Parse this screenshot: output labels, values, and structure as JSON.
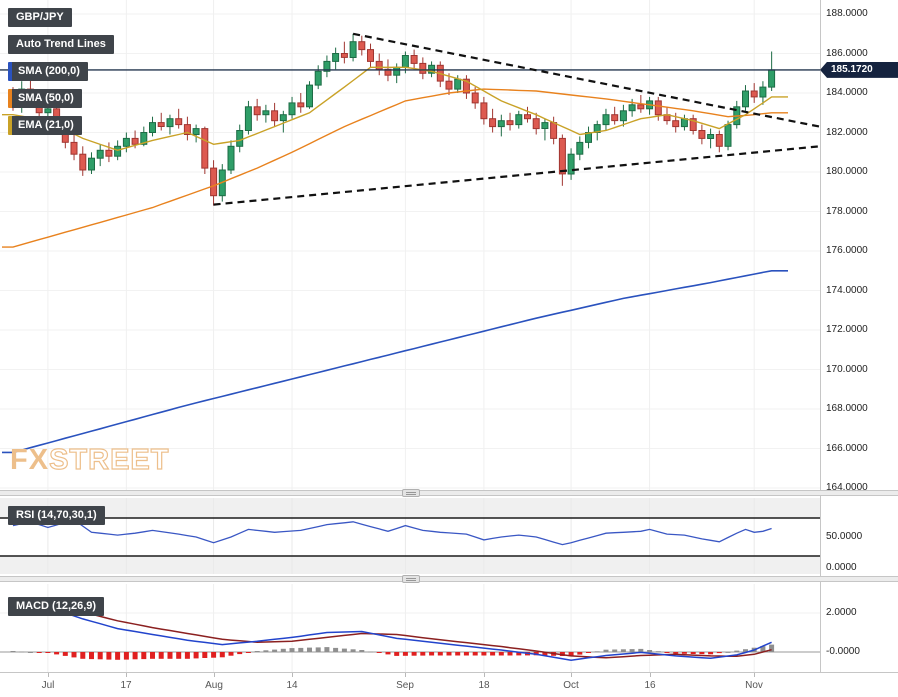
{
  "window": {
    "app": "FXStreet technical chart",
    "symbol": "GBP/JPY"
  },
  "badges": {
    "symbol": "GBP/JPY",
    "auto_trend": "Auto Trend Lines",
    "sma200": "SMA (200,0)",
    "sma50": "SMA (50,0)",
    "ema21": "EMA (21,0)",
    "rsi": "RSI (14,70,30,1)",
    "macd": "MACD (12,26,9)"
  },
  "watermark": {
    "fx": "FX",
    "street": "STREET"
  },
  "colors": {
    "candle_up": "#2f9e68",
    "candle_up_border": "#1d6b45",
    "candle_down": "#dd5a50",
    "candle_down_border": "#a03530",
    "sma200": "#2a52be",
    "sma50": "#e8821e",
    "ema21": "#c9a227",
    "price_line": "#24364f",
    "trend": "#111111",
    "rsi_line": "#3a57c4",
    "rsi_level": "#1c1c1c",
    "macd_line": "#2244cc",
    "macd_signal": "#8b2020",
    "hist_neg": "#e02020",
    "hist_pos": "#8f8f8f",
    "badge_bg": "#3f444a",
    "badge_text": "#ffffff",
    "price_badge_bg": "#15233f",
    "watermark": "#edbf8b"
  },
  "price_axis": {
    "labels": [
      {
        "v": 188,
        "t": "188.0000"
      },
      {
        "v": 186,
        "t": "186.0000"
      },
      {
        "v": 184,
        "t": "184.0000"
      },
      {
        "v": 182,
        "t": "182.0000"
      },
      {
        "v": 180,
        "t": "180.0000"
      },
      {
        "v": 178,
        "t": "178.0000"
      },
      {
        "v": 176,
        "t": "176.0000"
      },
      {
        "v": 174,
        "t": "174.0000"
      },
      {
        "v": 172,
        "t": "172.0000"
      },
      {
        "v": 170,
        "t": "170.0000"
      },
      {
        "v": 168,
        "t": "168.0000"
      },
      {
        "v": 166,
        "t": "166.0000"
      },
      {
        "v": 164,
        "t": "164.0000"
      }
    ],
    "current": {
      "label": "185.1720",
      "value": 185.172
    }
  },
  "rsi_axis": {
    "labels": [
      {
        "v": 50,
        "t": "50.0000"
      },
      {
        "v": 0,
        "t": "0.0000"
      }
    ]
  },
  "macd_axis": {
    "labels": [
      {
        "v": 2,
        "t": "2.0000"
      },
      {
        "v": 0,
        "t": "-0.0000"
      }
    ]
  },
  "x_axis": {
    "ticks": [
      {
        "t": "Jul",
        "bar": 4
      },
      {
        "t": "17",
        "bar": 13
      },
      {
        "t": "Aug",
        "bar": 23
      },
      {
        "t": "14",
        "bar": 32
      },
      {
        "t": "Sep",
        "bar": 45
      },
      {
        "t": "18",
        "bar": 54
      },
      {
        "t": "Oct",
        "bar": 64
      },
      {
        "t": "16",
        "bar": 73
      },
      {
        "t": "Nov",
        "bar": 85
      }
    ]
  },
  "chart_data": [
    {
      "type": "candlestick",
      "title": "GBP/JPY daily candles with SMA(200), SMA(50), EMA(21), auto trend lines and last price 185.1720",
      "x_tick_labels": [
        "Jul",
        "17",
        "Aug",
        "14",
        "Sep",
        "18",
        "Oct",
        "16",
        "Nov"
      ],
      "x_tick_bars": [
        4,
        13,
        23,
        32,
        45,
        54,
        64,
        73,
        85
      ],
      "ylim": [
        163.6,
        188.4
      ],
      "y_ticks": [
        164,
        166,
        168,
        170,
        172,
        174,
        176,
        178,
        180,
        182,
        184,
        186,
        188
      ],
      "current_price": 185.172,
      "ohlc": [
        [
          183.9,
          184.3,
          183.1,
          183.3
        ],
        [
          183.3,
          184.6,
          183.0,
          184.2
        ],
        [
          184.2,
          184.8,
          183.6,
          183.8
        ],
        [
          183.8,
          184.1,
          182.8,
          183.0
        ],
        [
          183.0,
          183.5,
          182.4,
          183.2
        ],
        [
          183.2,
          183.4,
          181.9,
          182.1
        ],
        [
          182.1,
          182.5,
          181.2,
          181.5
        ],
        [
          181.5,
          182.0,
          180.6,
          180.9
        ],
        [
          180.9,
          181.3,
          179.8,
          180.1
        ],
        [
          180.1,
          181.0,
          179.9,
          180.7
        ],
        [
          180.7,
          181.4,
          180.3,
          181.1
        ],
        [
          181.1,
          181.5,
          180.5,
          180.8
        ],
        [
          180.8,
          181.6,
          180.6,
          181.3
        ],
        [
          181.3,
          182.0,
          181.0,
          181.7
        ],
        [
          181.7,
          182.1,
          181.2,
          181.4
        ],
        [
          181.4,
          182.3,
          181.3,
          182.0
        ],
        [
          182.0,
          182.8,
          181.8,
          182.5
        ],
        [
          182.5,
          183.0,
          182.1,
          182.3
        ],
        [
          182.3,
          182.9,
          181.9,
          182.7
        ],
        [
          182.7,
          183.2,
          182.2,
          182.4
        ],
        [
          182.4,
          182.8,
          181.6,
          181.9
        ],
        [
          181.9,
          182.4,
          181.5,
          182.2
        ],
        [
          182.2,
          182.3,
          179.9,
          180.2
        ],
        [
          180.2,
          180.6,
          178.3,
          178.8
        ],
        [
          178.8,
          180.4,
          178.5,
          180.1
        ],
        [
          180.1,
          181.6,
          179.9,
          181.3
        ],
        [
          181.3,
          182.4,
          181.0,
          182.1
        ],
        [
          182.1,
          183.6,
          181.9,
          183.3
        ],
        [
          183.3,
          183.7,
          182.6,
          182.9
        ],
        [
          182.9,
          183.4,
          182.5,
          183.1
        ],
        [
          183.1,
          183.5,
          182.3,
          182.6
        ],
        [
          182.6,
          183.1,
          182.0,
          182.9
        ],
        [
          182.9,
          183.8,
          182.7,
          183.5
        ],
        [
          183.5,
          184.0,
          183.0,
          183.3
        ],
        [
          183.3,
          184.6,
          183.2,
          184.4
        ],
        [
          184.4,
          185.4,
          184.2,
          185.1
        ],
        [
          185.1,
          185.9,
          184.8,
          185.6
        ],
        [
          185.6,
          186.3,
          185.2,
          186.0
        ],
        [
          186.0,
          186.6,
          185.5,
          185.8
        ],
        [
          185.8,
          187.0,
          185.6,
          186.6
        ],
        [
          186.6,
          186.9,
          185.9,
          186.2
        ],
        [
          186.2,
          186.5,
          185.3,
          185.6
        ],
        [
          185.6,
          186.0,
          184.9,
          185.2
        ],
        [
          185.2,
          185.7,
          184.6,
          184.9
        ],
        [
          184.9,
          185.5,
          184.5,
          185.3
        ],
        [
          185.3,
          186.1,
          185.0,
          185.9
        ],
        [
          185.9,
          186.2,
          185.2,
          185.5
        ],
        [
          185.5,
          185.8,
          184.7,
          185.0
        ],
        [
          185.0,
          185.6,
          184.8,
          185.4
        ],
        [
          185.4,
          185.6,
          184.3,
          184.6
        ],
        [
          184.6,
          185.0,
          183.9,
          184.2
        ],
        [
          184.2,
          184.9,
          184.0,
          184.7
        ],
        [
          184.7,
          184.9,
          183.7,
          184.0
        ],
        [
          184.0,
          184.3,
          183.2,
          183.5
        ],
        [
          183.5,
          183.8,
          182.4,
          182.7
        ],
        [
          182.7,
          183.2,
          182.0,
          182.3
        ],
        [
          182.3,
          182.9,
          181.8,
          182.6
        ],
        [
          182.6,
          183.0,
          182.1,
          182.4
        ],
        [
          182.4,
          183.1,
          182.2,
          182.9
        ],
        [
          182.9,
          183.3,
          182.5,
          182.7
        ],
        [
          182.7,
          183.0,
          181.9,
          182.2
        ],
        [
          182.2,
          182.7,
          181.6,
          182.5
        ],
        [
          182.5,
          182.8,
          181.4,
          181.7
        ],
        [
          181.7,
          181.9,
          179.3,
          179.9
        ],
        [
          179.9,
          181.2,
          179.6,
          180.9
        ],
        [
          180.9,
          181.8,
          180.6,
          181.5
        ],
        [
          181.5,
          182.3,
          181.2,
          182.0
        ],
        [
          182.0,
          182.6,
          181.6,
          182.4
        ],
        [
          182.4,
          183.2,
          182.1,
          182.9
        ],
        [
          182.9,
          183.3,
          182.4,
          182.6
        ],
        [
          182.6,
          183.4,
          182.3,
          183.1
        ],
        [
          183.1,
          183.7,
          182.8,
          183.4
        ],
        [
          183.4,
          183.9,
          183.0,
          183.2
        ],
        [
          183.2,
          183.8,
          182.9,
          183.6
        ],
        [
          183.6,
          183.8,
          182.6,
          182.9
        ],
        [
          182.9,
          183.3,
          182.4,
          182.6
        ],
        [
          182.6,
          183.0,
          182.0,
          182.3
        ],
        [
          182.3,
          182.9,
          182.1,
          182.7
        ],
        [
          182.7,
          182.9,
          181.9,
          182.1
        ],
        [
          182.1,
          182.4,
          181.4,
          181.7
        ],
        [
          181.7,
          182.2,
          181.2,
          181.9
        ],
        [
          181.9,
          182.1,
          181.0,
          181.3
        ],
        [
          181.3,
          182.6,
          181.1,
          182.4
        ],
        [
          182.4,
          183.6,
          182.2,
          183.3
        ],
        [
          183.3,
          184.4,
          183.1,
          184.1
        ],
        [
          184.1,
          184.5,
          183.5,
          183.8
        ],
        [
          183.8,
          184.6,
          183.4,
          184.3
        ],
        [
          184.3,
          186.1,
          184.1,
          185.172
        ]
      ],
      "overlays": {
        "sma200_anchors": [
          [
            0,
            165.8
          ],
          [
            10,
            167.0
          ],
          [
            20,
            168.2
          ],
          [
            30,
            169.3
          ],
          [
            40,
            170.4
          ],
          [
            50,
            171.5
          ],
          [
            60,
            172.6
          ],
          [
            70,
            173.6
          ],
          [
            80,
            174.4
          ],
          [
            87,
            175.0
          ]
        ],
        "sma50_anchors": [
          [
            0,
            176.2
          ],
          [
            8,
            177.2
          ],
          [
            16,
            178.2
          ],
          [
            23,
            179.3
          ],
          [
            28,
            180.2
          ],
          [
            32,
            181.0
          ],
          [
            38,
            182.3
          ],
          [
            45,
            183.6
          ],
          [
            50,
            184.0
          ],
          [
            54,
            184.2
          ],
          [
            60,
            184.1
          ],
          [
            64,
            183.9
          ],
          [
            68,
            183.7
          ],
          [
            73,
            183.4
          ],
          [
            78,
            183.1
          ],
          [
            82,
            182.8
          ],
          [
            85,
            182.9
          ],
          [
            87,
            183.0
          ]
        ],
        "ema21_anchors": [
          [
            0,
            182.9
          ],
          [
            4,
            182.6
          ],
          [
            8,
            181.7
          ],
          [
            12,
            181.1
          ],
          [
            16,
            181.6
          ],
          [
            20,
            182.0
          ],
          [
            23,
            181.4
          ],
          [
            26,
            181.6
          ],
          [
            30,
            182.3
          ],
          [
            34,
            183.0
          ],
          [
            38,
            184.3
          ],
          [
            41,
            185.3
          ],
          [
            45,
            185.3
          ],
          [
            48,
            185.1
          ],
          [
            52,
            184.6
          ],
          [
            56,
            183.6
          ],
          [
            60,
            182.9
          ],
          [
            63,
            182.3
          ],
          [
            65,
            181.9
          ],
          [
            68,
            182.1
          ],
          [
            72,
            182.7
          ],
          [
            75,
            182.9
          ],
          [
            78,
            182.6
          ],
          [
            81,
            182.2
          ],
          [
            84,
            182.9
          ],
          [
            87,
            183.8
          ]
        ]
      },
      "trendlines": [
        {
          "name": "upper-descending",
          "from": [
            39,
            187.0
          ],
          "to": [
            92.5,
            182.3
          ]
        },
        {
          "name": "lower-ascending",
          "from": [
            23,
            178.35
          ],
          "to": [
            92.5,
            181.3
          ]
        }
      ]
    },
    {
      "type": "line",
      "name": "RSI (14,70,30,1)",
      "levels": [
        70,
        30
      ],
      "ylim": [
        0,
        100
      ],
      "y_tick_labels": [
        "50.0000",
        "0.0000"
      ],
      "anchors": [
        [
          0,
          62
        ],
        [
          2,
          66
        ],
        [
          4,
          60
        ],
        [
          7,
          68
        ],
        [
          9,
          55
        ],
        [
          12,
          52
        ],
        [
          14,
          54
        ],
        [
          16,
          57
        ],
        [
          19,
          53
        ],
        [
          21,
          50
        ],
        [
          23,
          44
        ],
        [
          25,
          50
        ],
        [
          27,
          58
        ],
        [
          30,
          55
        ],
        [
          33,
          57
        ],
        [
          36,
          63
        ],
        [
          39,
          66
        ],
        [
          41,
          61
        ],
        [
          43,
          56
        ],
        [
          45,
          62
        ],
        [
          47,
          57
        ],
        [
          49,
          55
        ],
        [
          52,
          53
        ],
        [
          54,
          47
        ],
        [
          56,
          50
        ],
        [
          58,
          52
        ],
        [
          60,
          50
        ],
        [
          63,
          42
        ],
        [
          64,
          44
        ],
        [
          66,
          49
        ],
        [
          68,
          54
        ],
        [
          70,
          55
        ],
        [
          72,
          56
        ],
        [
          73,
          58
        ],
        [
          75,
          53
        ],
        [
          77,
          52
        ],
        [
          79,
          48
        ],
        [
          81,
          45
        ],
        [
          83,
          54
        ],
        [
          84,
          58
        ],
        [
          85,
          55
        ],
        [
          86,
          56
        ],
        [
          87,
          59
        ]
      ]
    },
    {
      "type": "macd",
      "name": "MACD (12,26,9)",
      "y_tick_labels": [
        "2.0000",
        "-0.0000"
      ],
      "macd_anchors": [
        [
          0,
          2.6
        ],
        [
          4,
          2.3
        ],
        [
          8,
          1.7
        ],
        [
          12,
          1.2
        ],
        [
          16,
          0.9
        ],
        [
          20,
          0.6
        ],
        [
          24,
          0.38
        ],
        [
          28,
          0.55
        ],
        [
          32,
          0.75
        ],
        [
          36,
          1.0
        ],
        [
          40,
          1.05
        ],
        [
          44,
          0.7
        ],
        [
          48,
          0.5
        ],
        [
          52,
          0.3
        ],
        [
          56,
          0.1
        ],
        [
          60,
          -0.12
        ],
        [
          64,
          -0.42
        ],
        [
          68,
          -0.18
        ],
        [
          72,
          -0.02
        ],
        [
          76,
          -0.2
        ],
        [
          80,
          -0.32
        ],
        [
          83,
          -0.15
        ],
        [
          85,
          0.1
        ],
        [
          87,
          0.5
        ]
      ],
      "signal_anchors": [
        [
          0,
          2.55
        ],
        [
          4,
          2.35
        ],
        [
          8,
          2.05
        ],
        [
          12,
          1.6
        ],
        [
          16,
          1.25
        ],
        [
          20,
          0.95
        ],
        [
          24,
          0.65
        ],
        [
          28,
          0.5
        ],
        [
          32,
          0.55
        ],
        [
          36,
          0.75
        ],
        [
          40,
          0.95
        ],
        [
          44,
          0.9
        ],
        [
          48,
          0.68
        ],
        [
          52,
          0.48
        ],
        [
          56,
          0.28
        ],
        [
          60,
          0.05
        ],
        [
          64,
          -0.2
        ],
        [
          68,
          -0.3
        ],
        [
          72,
          -0.18
        ],
        [
          76,
          -0.12
        ],
        [
          80,
          -0.2
        ],
        [
          83,
          -0.22
        ],
        [
          85,
          -0.12
        ],
        [
          87,
          0.12
        ]
      ],
      "histogram_rule": "macd minus signal; red when negative, gray when positive"
    }
  ]
}
